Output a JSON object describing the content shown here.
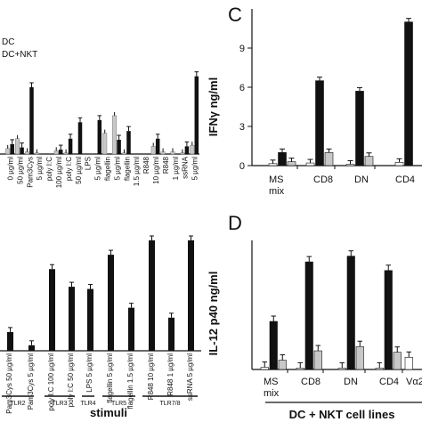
{
  "figure": {
    "legend": [
      "DC",
      "DC+NKT"
    ],
    "panel_letters": [
      "C",
      "D"
    ],
    "bottom_left_xlabel": "stimuli",
    "bottom_right_xlabel": "DC + NKT cell lines"
  },
  "colors": {
    "black": "#111111",
    "grey": "#c8c8c8",
    "white": "#ffffff"
  },
  "chart_data": [
    {
      "id": "top-left",
      "type": "bar",
      "title": "",
      "ylabel": "",
      "categories": [
        "0 µg/ml",
        "50 µg/ml",
        "Pam3Cys",
        "5 µg/ml",
        "poly I:C",
        "100 µg/ml",
        "poly I:C",
        "50 µg/ml",
        "LPS",
        "5 µg/ml",
        "flagellin",
        "5 µg/ml",
        "flagellin",
        "1.5 µg/ml",
        "R848",
        "10 µg/ml",
        "R848",
        "1 µg/ml",
        "ssRNA",
        "5 µg/ml"
      ],
      "ylim": [
        0,
        1
      ],
      "series": [
        {
          "name": "DC",
          "values": [
            0.05,
            0.14,
            0.02,
            0.01,
            0.0,
            0.03,
            0.01,
            0.0,
            0.0,
            0.0,
            0.19,
            0.35,
            0.01,
            0.0,
            0.0,
            0.07,
            0.02,
            0.02,
            0.01,
            0.08
          ]
        },
        {
          "name": "DC+NKT",
          "values": [
            0.09,
            0.06,
            0.61,
            0.0,
            0.0,
            0.04,
            0.14,
            0.29,
            0.0,
            0.31,
            0.0,
            0.13,
            0.21,
            0.0,
            0.0,
            0.14,
            0.0,
            0.0,
            0.07,
            0.71
          ]
        }
      ]
    },
    {
      "id": "panel-C",
      "type": "bar",
      "title": "",
      "ylabel": "IFNγ ng/ml",
      "yticks": [
        0,
        3,
        6,
        9
      ],
      "ylim": [
        0,
        12
      ],
      "categories": [
        "MS mix",
        "CD8",
        "DN",
        "CD4"
      ],
      "series": [
        {
          "name": "white",
          "values": [
            0.15,
            0.2,
            0.1,
            0.25
          ]
        },
        {
          "name": "black",
          "values": [
            1.0,
            6.5,
            5.7,
            11.0
          ]
        },
        {
          "name": "grey",
          "values": [
            0.3,
            1.0,
            0.7,
            0.0
          ]
        }
      ]
    },
    {
      "id": "bottom-left",
      "type": "bar",
      "title": "",
      "ylabel": "",
      "categories": [
        "Pam3Cys 50 µg/ml",
        "Pam3Cys 5 µg/ml",
        "poly I:C 100 µg/ml",
        "poly I:C 50 µg/ml",
        "LPS 5 µg/ml",
        "flagellin 5 µg/ml",
        "flagellin 1.5 µg/ml",
        "R848 10 µg/ml",
        "R848 1 µg/ml",
        "ssRNA 5 µg/ml"
      ],
      "groups": [
        "TLR2",
        "TLR3",
        "TLR4",
        "TLR5",
        "TLR7/8"
      ],
      "ylim": [
        0,
        1
      ],
      "series": [
        {
          "name": "DC+NKT",
          "values": [
            0.17,
            0.05,
            0.74,
            0.58,
            0.56,
            0.87,
            0.39,
            1.0,
            0.3,
            1.0
          ]
        }
      ]
    },
    {
      "id": "panel-D",
      "type": "bar",
      "title": "",
      "ylabel": "IL-12 p40 ng/ml",
      "categories": [
        "MS mix",
        "CD8",
        "DN",
        "CD4",
        "Vα2"
      ],
      "ylim": [
        0,
        18
      ],
      "series": [
        {
          "name": "white",
          "values": [
            0.3,
            0.2,
            0.2,
            0.2,
            1.7
          ]
        },
        {
          "name": "black",
          "values": [
            6.7,
            15.0,
            15.8,
            13.8,
            0.0
          ]
        },
        {
          "name": "grey",
          "values": [
            1.3,
            2.6,
            3.2,
            2.4,
            0.0
          ]
        }
      ]
    }
  ]
}
